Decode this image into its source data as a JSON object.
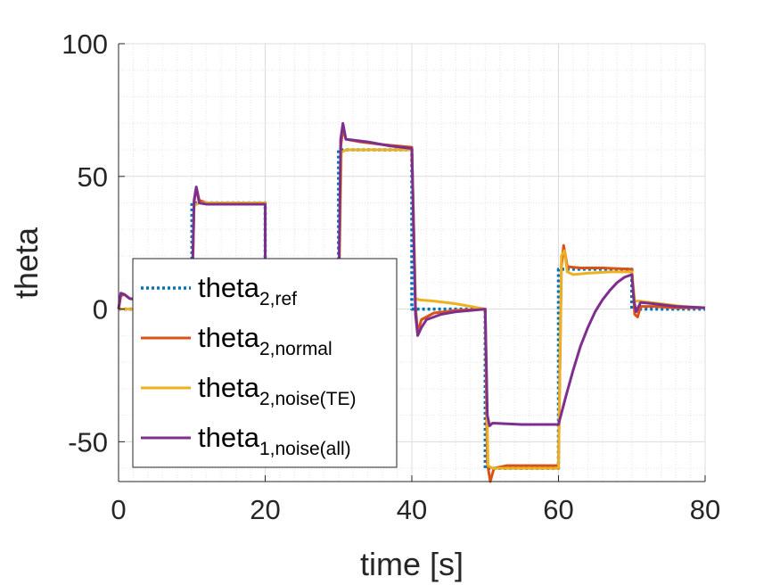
{
  "chart_data": {
    "type": "line",
    "xlabel": "time [s]",
    "ylabel": "theta",
    "xlim": [
      0,
      80
    ],
    "ylim": [
      -65,
      100
    ],
    "xticks": [
      0,
      20,
      40,
      60,
      80
    ],
    "yticks": [
      -50,
      0,
      50,
      100
    ],
    "grid": true,
    "legend_position": "lower-left",
    "series": [
      {
        "name": "theta",
        "subscript": "2,ref",
        "color": "#0072BD",
        "style": "dotted",
        "points": [
          [
            0,
            0
          ],
          [
            10,
            0
          ],
          [
            10,
            40
          ],
          [
            20,
            40
          ],
          [
            20,
            0
          ],
          [
            30,
            0
          ],
          [
            30,
            60
          ],
          [
            40,
            60
          ],
          [
            40,
            0
          ],
          [
            50,
            0
          ],
          [
            50,
            -60
          ],
          [
            60,
            -60
          ],
          [
            60,
            15
          ],
          [
            70,
            15
          ],
          [
            70,
            0
          ],
          [
            80,
            0
          ]
        ]
      },
      {
        "name": "theta",
        "subscript": "2,normal",
        "color": "#D95319",
        "style": "solid",
        "points": [
          [
            0,
            0
          ],
          [
            0.3,
            5
          ],
          [
            0.8,
            5.5
          ],
          [
            1.5,
            4
          ],
          [
            3,
            3
          ],
          [
            5,
            2.5
          ],
          [
            10,
            2
          ],
          [
            10.3,
            40
          ],
          [
            10.6,
            46
          ],
          [
            11,
            41
          ],
          [
            12,
            40
          ],
          [
            20,
            40
          ],
          [
            20,
            0
          ],
          [
            30,
            0
          ],
          [
            30.3,
            61
          ],
          [
            30.6,
            68
          ],
          [
            31,
            64
          ],
          [
            33,
            63
          ],
          [
            36,
            62
          ],
          [
            40,
            61
          ],
          [
            40.5,
            1
          ],
          [
            40.8,
            -9
          ],
          [
            41.3,
            -4
          ],
          [
            43,
            -1.5
          ],
          [
            46,
            -0.5
          ],
          [
            50,
            0
          ],
          [
            50.3,
            -58
          ],
          [
            50.7,
            -65
          ],
          [
            51.2,
            -60
          ],
          [
            53,
            -59
          ],
          [
            57,
            -59
          ],
          [
            60,
            -59
          ],
          [
            60.4,
            16
          ],
          [
            60.7,
            24
          ],
          [
            61.2,
            16
          ],
          [
            63,
            15.5
          ],
          [
            66,
            15.5
          ],
          [
            70,
            15
          ],
          [
            70.4,
            -2
          ],
          [
            70.8,
            -3
          ],
          [
            71.2,
            1
          ],
          [
            73,
            1
          ],
          [
            76,
            0.5
          ],
          [
            80,
            0.5
          ]
        ]
      },
      {
        "name": "theta",
        "subscript": "2,noise(TE)",
        "color": "#EDB120",
        "style": "solid",
        "points": [
          [
            0,
            0
          ],
          [
            2,
            0
          ],
          [
            5,
            0
          ],
          [
            10,
            0
          ],
          [
            10.3,
            39
          ],
          [
            11,
            40
          ],
          [
            20,
            40
          ],
          [
            20,
            0
          ],
          [
            30,
            0
          ],
          [
            30.4,
            59
          ],
          [
            31,
            60
          ],
          [
            35,
            60
          ],
          [
            40,
            60
          ],
          [
            40.5,
            4
          ],
          [
            41,
            3.5
          ],
          [
            43,
            3
          ],
          [
            46,
            2
          ],
          [
            50,
            0
          ],
          [
            50.4,
            -59
          ],
          [
            51,
            -60
          ],
          [
            55,
            -60
          ],
          [
            60,
            -60
          ],
          [
            60.4,
            20
          ],
          [
            60.8,
            22
          ],
          [
            61.2,
            14
          ],
          [
            62,
            13
          ],
          [
            64,
            13.5
          ],
          [
            67,
            14
          ],
          [
            70,
            14
          ],
          [
            70.4,
            3
          ],
          [
            71,
            3
          ],
          [
            74,
            2
          ],
          [
            77,
            1
          ],
          [
            80,
            0.5
          ]
        ]
      },
      {
        "name": "theta",
        "subscript": "1,noise(all)",
        "color": "#7E2F8E",
        "style": "solid",
        "points": [
          [
            0,
            0
          ],
          [
            0.3,
            6
          ],
          [
            0.8,
            5.5
          ],
          [
            1.5,
            4
          ],
          [
            3,
            3.5
          ],
          [
            10,
            3
          ],
          [
            10.3,
            41
          ],
          [
            10.6,
            46
          ],
          [
            11,
            40
          ],
          [
            12,
            39.5
          ],
          [
            20,
            39.5
          ],
          [
            20,
            0
          ],
          [
            30,
            0
          ],
          [
            30.3,
            64
          ],
          [
            30.6,
            70
          ],
          [
            31,
            64
          ],
          [
            34,
            63
          ],
          [
            37,
            61.5
          ],
          [
            40,
            60.5
          ],
          [
            40.5,
            -2
          ],
          [
            40.8,
            -10
          ],
          [
            41.3,
            -7
          ],
          [
            42,
            -4
          ],
          [
            44,
            -2
          ],
          [
            46,
            -1
          ],
          [
            50,
            0
          ],
          [
            50.3,
            -40
          ],
          [
            50.6,
            -44
          ],
          [
            51,
            -43
          ],
          [
            55,
            -43.5
          ],
          [
            60,
            -43.5
          ],
          [
            61,
            -33
          ],
          [
            62,
            -23
          ],
          [
            63,
            -14
          ],
          [
            64,
            -7
          ],
          [
            65,
            -1
          ],
          [
            66,
            3.5
          ],
          [
            67,
            7
          ],
          [
            68,
            10
          ],
          [
            69,
            12
          ],
          [
            70,
            13
          ],
          [
            70.3,
            3
          ],
          [
            70.6,
            -1
          ],
          [
            71.2,
            2.5
          ],
          [
            73,
            2
          ],
          [
            76,
            1
          ],
          [
            80,
            0.5
          ]
        ]
      }
    ]
  }
}
